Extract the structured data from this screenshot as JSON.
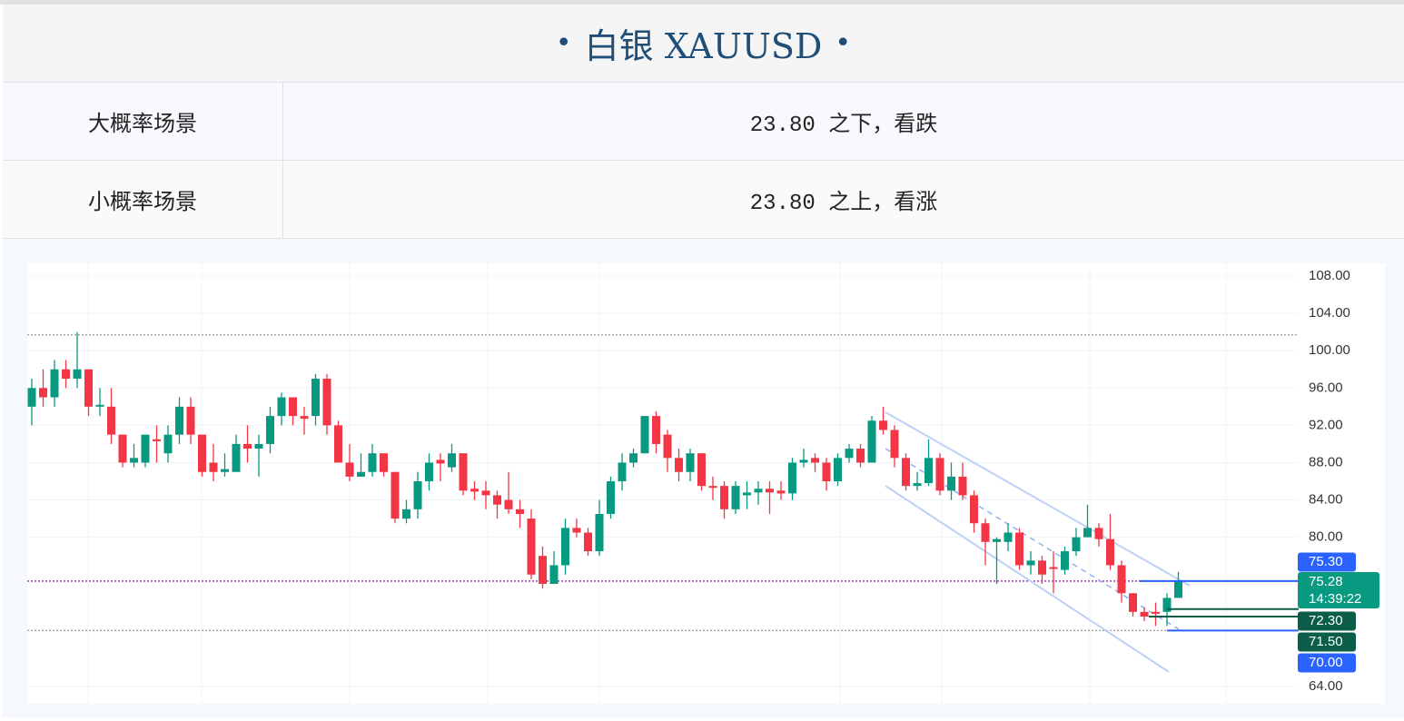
{
  "header": {
    "title": "白银 XAUUSD"
  },
  "table": {
    "rows": [
      [
        "大概率场景",
        "23.80 之下，看跌"
      ],
      [
        "小概率场景",
        "23.80 之上，看涨"
      ]
    ]
  },
  "chart_data": {
    "type": "candlestick",
    "open": [
      94,
      96,
      95,
      98,
      97,
      98,
      94,
      94,
      91,
      88,
      88,
      90.5,
      89,
      91,
      94,
      91,
      88,
      87,
      87,
      90,
      89.5,
      90,
      93,
      95,
      93,
      93,
      97,
      92,
      88,
      86.5,
      87,
      89,
      87,
      82,
      83,
      86,
      88.3,
      87.5,
      89,
      85.2,
      85,
      84.5,
      84,
      83,
      82,
      78,
      75,
      77,
      81,
      80.5,
      78.5,
      82.5,
      86,
      88,
      89,
      93,
      91,
      88.5,
      87,
      89,
      85.5,
      85.5,
      83,
      84.5,
      84.8,
      85.2,
      85,
      84.7,
      88,
      88.5,
      88,
      86,
      88.5,
      89.5,
      88,
      92.5,
      91.5,
      88.5,
      85.5,
      85.8,
      88.5,
      85,
      86.5,
      84.5,
      81.5,
      79.5,
      79.5,
      80.5,
      77,
      77.5,
      76.8,
      76.5,
      78.5,
      80,
      81,
      79.8,
      77,
      74,
      72,
      72,
      72,
      73.5
    ],
    "high": [
      97,
      98,
      99,
      99,
      102,
      98,
      96,
      96,
      91,
      90,
      91,
      92,
      92,
      95,
      95,
      91,
      90,
      89,
      91,
      92,
      91,
      94,
      95.5,
      95,
      94,
      97.5,
      97.5,
      92.5,
      90,
      89,
      90,
      89,
      87,
      84,
      87,
      89,
      89,
      90,
      89,
      86,
      86,
      85,
      87,
      84,
      83,
      79,
      78.5,
      82,
      82,
      81,
      84,
      86.5,
      89,
      89.5,
      93,
      93.5,
      91.5,
      89.5,
      89.5,
      89,
      86.5,
      86,
      86,
      86,
      86,
      86,
      86,
      88.5,
      89.5,
      89,
      88.5,
      89,
      90,
      90,
      93,
      94,
      92,
      89,
      87,
      90.5,
      89,
      88,
      88,
      85,
      82,
      80,
      81.5,
      81,
      78.5,
      78,
      78.5,
      79,
      81,
      83.5,
      81.5,
      82.5,
      77.5,
      74,
      72.5,
      73,
      74,
      76.3
    ],
    "low": [
      92,
      94,
      94,
      96,
      96,
      93,
      93,
      90,
      87.5,
      87.5,
      87.5,
      88,
      88,
      90,
      90,
      86.5,
      86,
      86.5,
      87,
      88,
      86.5,
      89,
      92,
      92,
      91,
      92,
      91,
      88,
      86,
      86.5,
      86.5,
      86.5,
      81.5,
      81.5,
      82,
      85,
      86,
      87,
      84.5,
      84,
      83,
      82,
      82.5,
      81,
      75.5,
      74.5,
      75,
      76,
      80,
      78,
      78,
      82,
      85,
      87.5,
      89,
      89,
      87,
      86,
      86,
      85,
      84,
      82,
      82.5,
      83,
      83.5,
      82.5,
      84,
      84,
      87.5,
      87,
      85,
      85.5,
      88,
      87.5,
      88,
      91,
      87.5,
      85,
      85,
      85.5,
      84.5,
      84,
      84,
      80.5,
      77,
      75,
      78.5,
      76.5,
      76,
      75,
      74,
      76,
      78,
      80,
      79,
      76.5,
      73,
      71.5,
      71,
      70.5,
      70.5,
      73.5
    ],
    "close": [
      96,
      95,
      98,
      97,
      98,
      94,
      94.2,
      91,
      88,
      88.5,
      91,
      90.3,
      91,
      94,
      91,
      87,
      87,
      87.3,
      90,
      89.5,
      90,
      93,
      95,
      93,
      92.7,
      97,
      92,
      88,
      86.5,
      87,
      89,
      87,
      82,
      83,
      86,
      88,
      87.9,
      89,
      85,
      84.9,
      84.5,
      83.5,
      83,
      82.5,
      76,
      75,
      77,
      81,
      80.5,
      78.5,
      82.5,
      86,
      88,
      89,
      93,
      90,
      88.5,
      87,
      89,
      85.5,
      85.3,
      83,
      85.5,
      84.8,
      85.2,
      84.8,
      84.7,
      88,
      88.3,
      88,
      86,
      88.5,
      89.5,
      88,
      92.5,
      91.5,
      88.5,
      85.5,
      85.8,
      88.5,
      85,
      86.5,
      84.5,
      81.5,
      79.5,
      79.8,
      80.5,
      77,
      77.5,
      76,
      76.6,
      78.5,
      80,
      81,
      79.8,
      77,
      74,
      72,
      71.5,
      71.8,
      73.5,
      75.28
    ],
    "up_color": "#089981",
    "down_color": "#f23645",
    "ylim": [
      62.15,
      108.88
    ],
    "yticks": [
      {
        "value": 108,
        "label": "108.00"
      },
      {
        "value": 104,
        "label": "104.00"
      },
      {
        "value": 100,
        "label": "100.00"
      },
      {
        "value": 96,
        "label": "96.00"
      },
      {
        "value": 92,
        "label": "92.00"
      },
      {
        "value": 88,
        "label": "88.00"
      },
      {
        "value": 84,
        "label": "84.00"
      },
      {
        "value": 80,
        "label": "80.00"
      },
      {
        "value": 64,
        "label": "64.00"
      }
    ],
    "grid": true,
    "reference_lines": [
      {
        "value": 101.7,
        "color": "#9e9e9e"
      },
      {
        "value": 70,
        "color": "#9e9e9e"
      },
      {
        "value": 75.3,
        "color": "#9c27b0"
      }
    ],
    "price_labels": [
      {
        "value": 75.3,
        "label": "75.30",
        "color": "#2962ff"
      },
      {
        "value": 75.28,
        "label": "75.28",
        "sub": "14:39:22",
        "color": "#089981"
      },
      {
        "value": 72.3,
        "label": "72.30",
        "color": "#0b5d49"
      },
      {
        "value": 71.5,
        "label": "71.50",
        "color": "#0b5d49"
      },
      {
        "value": 70,
        "label": "70.00",
        "color": "#2962ff"
      }
    ]
  }
}
